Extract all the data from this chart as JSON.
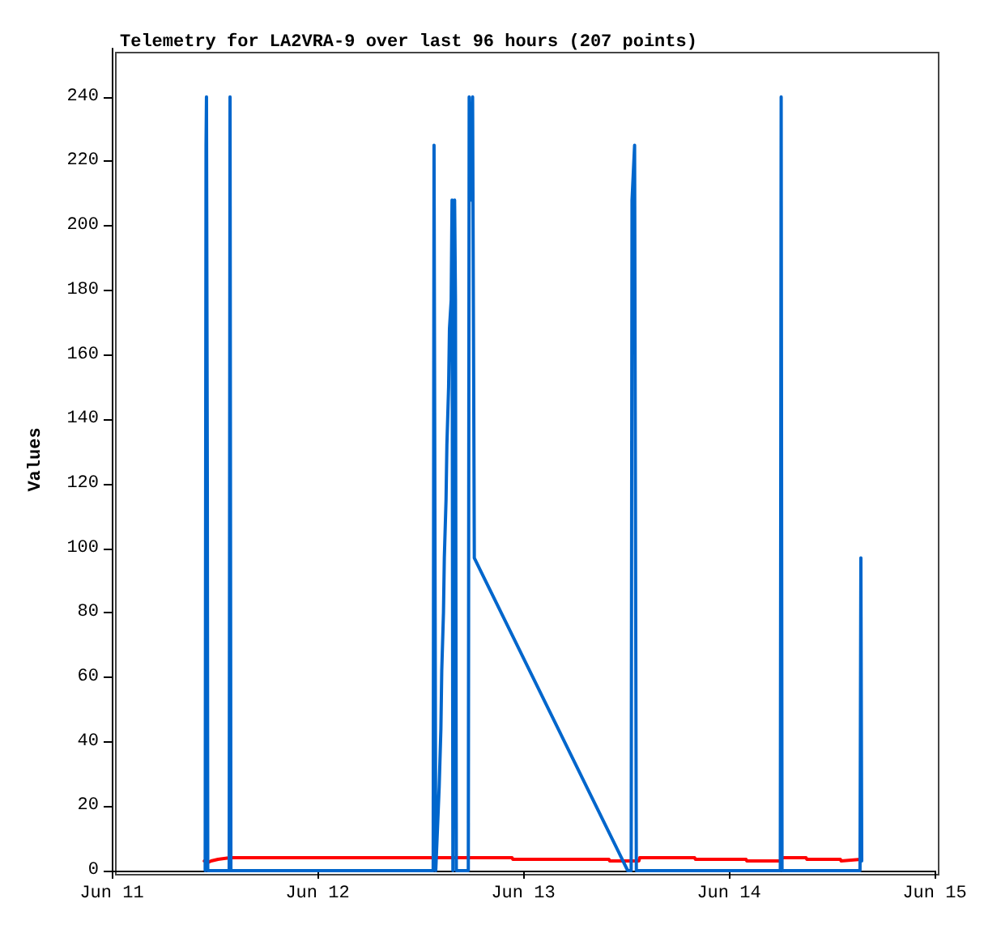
{
  "chart_data": {
    "type": "line",
    "title": "Telemetry for LA2VRA-9 over last 96 hours (207 points)",
    "ylabel": "Values",
    "xlim": [
      "--06-11",
      "--06-15"
    ],
    "xticks": [
      {
        "value": "--06-11",
        "label": "Jun 11"
      },
      {
        "value": "--06-12",
        "label": "Jun 12"
      },
      {
        "value": "--06-13",
        "label": "Jun 13"
      },
      {
        "value": "--06-14",
        "label": "Jun 14"
      },
      {
        "value": "--06-15",
        "label": "Jun 15"
      }
    ],
    "ylim": [
      0,
      255
    ],
    "yticks": [
      0,
      20,
      40,
      60,
      80,
      100,
      120,
      140,
      160,
      180,
      200,
      220,
      240
    ],
    "marker": "none",
    "line_style": "solid",
    "series": [
      {
        "color": "#ff0000",
        "x": [
          "--06-11T10:48",
          "--06-11T11:12",
          "--06-11T11:36",
          "--06-11T12:24",
          "--06-11T13:48",
          "--06-12T22:42",
          "--06-12T22:48",
          "--06-13T10:00",
          "--06-13T10:06",
          "--06-13T13:30",
          "--06-13T13:36",
          "--06-13T20:00",
          "--06-13T20:06",
          "--06-14T02:00",
          "--06-14T02:06",
          "--06-14T06:00",
          "--06-14T06:06",
          "--06-14T09:00",
          "--06-14T09:06",
          "--06-14T13:00",
          "--06-14T13:06",
          "--06-14T15:24"
        ],
        "values": [
          3,
          2.5,
          3,
          3.5,
          4,
          4,
          3.5,
          3.5,
          3,
          3,
          4,
          4,
          3.5,
          3.5,
          3,
          3,
          4,
          4,
          3.5,
          3.5,
          3,
          3.5
        ]
      },
      {
        "color": "#0066cc",
        "x": [
          "--06-11T10:54",
          "--06-11T11:00",
          "--06-11T11:03",
          "--06-11T11:09",
          "--06-11T11:12",
          "--06-11T13:42",
          "--06-11T13:48",
          "--06-11T13:54",
          "--06-12T13:30",
          "--06-12T13:36",
          "--06-12T13:42",
          "--06-12T13:48",
          "--06-12T14:12",
          "--06-12T14:24",
          "--06-12T14:30",
          "--06-12T14:42",
          "--06-12T14:48",
          "--06-12T15:00",
          "--06-12T15:06",
          "--06-12T15:18",
          "--06-12T15:24",
          "--06-12T15:36",
          "--06-12T15:42",
          "--06-12T15:48",
          "--06-12T16:00",
          "--06-12T16:06",
          "--06-12T16:12",
          "--06-12T17:36",
          "--06-12T17:42",
          "--06-12T17:54",
          "--06-12T18:06",
          "--06-12T18:18",
          "--06-13T12:12",
          "--06-13T12:36",
          "--06-13T12:42",
          "--06-13T13:00",
          "--06-13T13:12",
          "--06-14T06:00",
          "--06-14T06:06",
          "--06-14T06:12",
          "--06-14T15:18",
          "--06-14T15:24",
          "--06-14T15:30"
        ],
        "values": [
          0,
          225,
          240,
          120,
          0,
          0,
          240,
          0,
          0,
          225,
          112,
          0,
          26,
          44,
          62,
          80,
          97,
          115,
          132,
          150,
          168,
          177,
          208,
          0,
          208,
          177,
          0,
          0,
          240,
          208,
          240,
          97,
          0,
          0,
          208,
          225,
          0,
          0,
          240,
          0,
          0,
          97,
          3
        ]
      }
    ]
  }
}
